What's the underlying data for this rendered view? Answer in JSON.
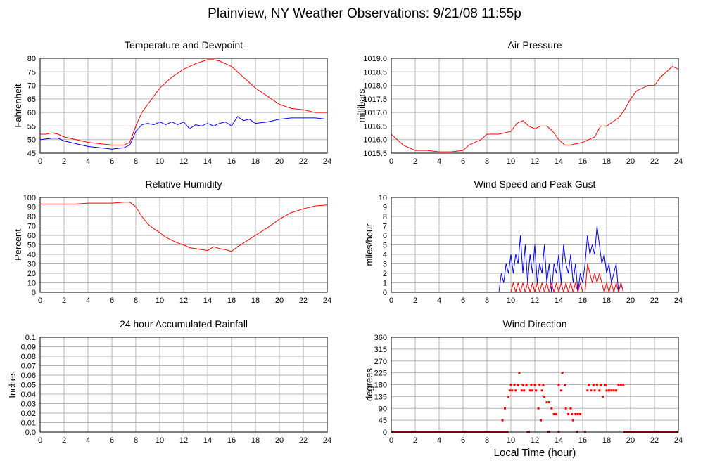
{
  "figure": {
    "title": "Plainview, NY Weather Observations: 9/21/08 11:55p",
    "xlabel": "Local Time (hour)"
  },
  "chart_data": [
    {
      "id": "temp",
      "type": "line",
      "title": "Temperature and Dewpoint",
      "ylabel": "Fahrenheit",
      "xlim": [
        0,
        24
      ],
      "ylim": [
        45,
        80
      ],
      "xticks": [
        0,
        2,
        4,
        6,
        8,
        10,
        12,
        14,
        16,
        18,
        20,
        22,
        24
      ],
      "yticks": [
        45,
        50,
        55,
        60,
        65,
        70,
        75,
        80
      ],
      "ytick_labels": [
        "45",
        "50",
        "55",
        "60",
        "65",
        "70",
        "75",
        "80"
      ],
      "grid": true,
      "series": [
        {
          "color": "#ff0000",
          "x": [
            0,
            0.5,
            1,
            1.5,
            2,
            3,
            4,
            5,
            6,
            7,
            7.5,
            8,
            8.5,
            9,
            9.5,
            10,
            11,
            12,
            13,
            14,
            14.5,
            15,
            16,
            17,
            18,
            19,
            20,
            21,
            22,
            23,
            24
          ],
          "y": [
            52,
            52,
            52.5,
            52,
            51,
            50,
            49,
            48.5,
            48,
            48,
            49,
            55,
            60,
            63,
            66,
            69,
            73,
            76,
            78,
            79.5,
            79.5,
            79,
            77,
            73,
            69,
            66,
            63,
            61.5,
            61,
            60,
            60
          ]
        },
        {
          "color": "#0000ff",
          "x": [
            0,
            1,
            1.5,
            2,
            3,
            4,
            5,
            6,
            7,
            7.5,
            8,
            8.5,
            9,
            9.5,
            10,
            10.5,
            11,
            11.5,
            12,
            12.5,
            13,
            13.5,
            14,
            14.5,
            15,
            15.5,
            16,
            16.5,
            17,
            17.5,
            18,
            19,
            20,
            21,
            22,
            23,
            24
          ],
          "y": [
            50,
            50.5,
            50.5,
            49.5,
            48.5,
            47.5,
            47,
            46.5,
            47,
            48,
            53,
            55.5,
            56,
            55.5,
            56.5,
            55.5,
            56.5,
            55.5,
            56.5,
            54,
            55.5,
            55,
            56,
            55,
            56,
            56.5,
            55,
            58.5,
            57,
            57.5,
            56,
            56.5,
            57.5,
            58,
            58,
            58,
            57.5
          ]
        }
      ]
    },
    {
      "id": "pressure",
      "type": "line",
      "title": "Air Pressure",
      "ylabel": "millibars",
      "xlim": [
        0,
        24
      ],
      "ylim": [
        1015.5,
        1019.0
      ],
      "xticks": [
        0,
        2,
        4,
        6,
        8,
        10,
        12,
        14,
        16,
        18,
        20,
        22,
        24
      ],
      "yticks": [
        1015.5,
        1016.0,
        1016.5,
        1017.0,
        1017.5,
        1018.0,
        1018.5,
        1019.0
      ],
      "ytick_labels": [
        "1015.5",
        "1016.0",
        "1016.5",
        "1017.0",
        "1017.5",
        "1018.0",
        "1018.5",
        "1019.0"
      ],
      "grid": true,
      "series": [
        {
          "color": "#ff0000",
          "x": [
            0,
            0.5,
            1,
            1.5,
            2,
            3,
            4,
            5,
            6,
            6.5,
            7,
            7.5,
            8,
            9,
            10,
            10.5,
            11,
            11.5,
            12,
            12.5,
            13,
            13.5,
            14,
            14.5,
            15,
            16,
            17,
            17.5,
            18,
            19,
            19.5,
            20,
            20.5,
            21,
            21.5,
            22,
            22.5,
            23,
            23.5,
            24
          ],
          "y": [
            1016.2,
            1016.0,
            1015.8,
            1015.7,
            1015.6,
            1015.6,
            1015.55,
            1015.55,
            1015.6,
            1015.8,
            1015.9,
            1016.0,
            1016.2,
            1016.2,
            1016.3,
            1016.6,
            1016.7,
            1016.5,
            1016.4,
            1016.5,
            1016.5,
            1016.3,
            1016.0,
            1015.8,
            1015.8,
            1015.9,
            1016.1,
            1016.5,
            1016.5,
            1016.8,
            1017.1,
            1017.5,
            1017.8,
            1017.9,
            1018.0,
            1018.0,
            1018.3,
            1018.5,
            1018.7,
            1018.6
          ]
        }
      ]
    },
    {
      "id": "humidity",
      "type": "line",
      "title": "Relative Humidity",
      "ylabel": "Percent",
      "xlim": [
        0,
        24
      ],
      "ylim": [
        0,
        100
      ],
      "xticks": [
        0,
        2,
        4,
        6,
        8,
        10,
        12,
        14,
        16,
        18,
        20,
        22,
        24
      ],
      "yticks": [
        0,
        10,
        20,
        30,
        40,
        50,
        60,
        70,
        80,
        90,
        100
      ],
      "ytick_labels": [
        "0",
        "10",
        "20",
        "30",
        "40",
        "50",
        "60",
        "70",
        "80",
        "90",
        "100"
      ],
      "grid": true,
      "series": [
        {
          "color": "#ff0000",
          "x": [
            0,
            1,
            2,
            3,
            4,
            5,
            6,
            7,
            7.5,
            8,
            8.5,
            9,
            9.5,
            10,
            10.5,
            11,
            11.5,
            12,
            12.5,
            13,
            13.5,
            14,
            14.5,
            15,
            15.5,
            16,
            16.5,
            17,
            18,
            19,
            20,
            21,
            22,
            23,
            24
          ],
          "y": [
            93,
            93,
            93,
            93,
            94,
            94,
            94,
            95,
            95,
            90,
            80,
            72,
            67,
            63,
            58,
            55,
            52,
            50,
            47,
            46,
            45,
            44,
            48,
            46,
            45,
            43,
            48,
            52,
            60,
            68,
            77,
            84,
            88,
            91,
            92
          ]
        }
      ]
    },
    {
      "id": "wind",
      "type": "line",
      "title": "Wind Speed and Peak Gust",
      "ylabel": "miles/hour",
      "xlim": [
        0,
        24
      ],
      "ylim": [
        0,
        10
      ],
      "xticks": [
        0,
        2,
        4,
        6,
        8,
        10,
        12,
        14,
        16,
        18,
        20,
        22,
        24
      ],
      "yticks": [
        0,
        1,
        2,
        3,
        4,
        5,
        6,
        7,
        8,
        9,
        10
      ],
      "ytick_labels": [
        "0",
        "1",
        "2",
        "3",
        "4",
        "5",
        "6",
        "7",
        "8",
        "9",
        "10"
      ],
      "grid": true,
      "series": [
        {
          "color": "#0000ff",
          "x": [
            0,
            9.0,
            9.2,
            9.4,
            9.6,
            9.8,
            10.0,
            10.2,
            10.4,
            10.6,
            10.8,
            11.0,
            11.2,
            11.4,
            11.6,
            11.8,
            12.0,
            12.2,
            12.4,
            12.6,
            12.8,
            13.0,
            13.2,
            13.4,
            13.6,
            13.8,
            14.0,
            14.2,
            14.4,
            14.6,
            14.8,
            15.0,
            15.2,
            15.4,
            15.6,
            15.8,
            16.0,
            16.2,
            16.4,
            16.6,
            16.8,
            17.0,
            17.2,
            17.4,
            17.6,
            17.8,
            18.0,
            18.2,
            18.4,
            18.6,
            18.8,
            19.0,
            19.2,
            19.4,
            19.6,
            20,
            24
          ],
          "y": [
            0,
            0,
            2,
            1,
            3,
            2,
            4,
            2,
            4,
            3,
            6,
            2,
            5,
            1,
            4,
            2,
            5,
            1,
            3,
            2,
            5,
            1,
            3,
            0,
            3,
            2,
            4,
            1,
            5,
            3,
            2,
            4,
            1,
            3,
            0,
            2,
            1,
            3,
            6,
            4,
            5,
            4,
            7,
            5,
            3,
            4,
            2,
            3,
            1,
            2,
            3,
            0,
            1,
            0,
            0,
            0,
            0
          ]
        },
        {
          "color": "#ff0000",
          "x": [
            0,
            10.0,
            10.2,
            10.4,
            10.6,
            10.8,
            11.0,
            11.2,
            11.4,
            11.6,
            11.8,
            12.0,
            12.2,
            12.4,
            12.6,
            12.8,
            13.0,
            13.2,
            13.4,
            13.6,
            13.8,
            14.0,
            14.2,
            14.4,
            14.6,
            14.8,
            15.0,
            15.2,
            15.4,
            15.6,
            15.8,
            16.0,
            16.2,
            16.4,
            16.6,
            16.8,
            17.0,
            17.2,
            17.4,
            17.6,
            17.8,
            18.0,
            18.2,
            18.4,
            18.6,
            18.8,
            19.0,
            19.2,
            19.4,
            24
          ],
          "y": [
            0,
            0,
            1,
            0,
            1,
            0,
            1,
            0,
            1,
            0,
            1,
            0,
            1,
            0,
            1,
            0,
            1,
            0,
            1,
            0,
            1,
            0,
            1,
            0,
            1,
            0,
            1,
            0,
            1,
            0,
            1,
            0,
            0,
            3,
            2,
            1,
            2,
            1,
            2,
            1,
            0,
            1,
            0,
            1,
            0,
            1,
            0,
            1,
            0,
            0
          ]
        }
      ]
    },
    {
      "id": "rain",
      "type": "line",
      "title": "24 hour Accumulated Rainfall",
      "ylabel": "Inches",
      "xlim": [
        0,
        24
      ],
      "ylim": [
        0,
        0.1
      ],
      "xticks": [
        0,
        2,
        4,
        6,
        8,
        10,
        12,
        14,
        16,
        18,
        20,
        22,
        24
      ],
      "yticks": [
        0,
        0.01,
        0.02,
        0.03,
        0.04,
        0.05,
        0.06,
        0.07,
        0.08,
        0.09,
        0.1
      ],
      "ytick_labels": [
        "0.0",
        "0.01",
        "0.02",
        "0.03",
        "0.04",
        "0.05",
        "0.06",
        "0.07",
        "0.08",
        "0.09",
        "0.1"
      ],
      "grid": true,
      "series": [
        {
          "color": "#ff0000",
          "x": [
            0,
            24
          ],
          "y": [
            0,
            0
          ]
        }
      ]
    },
    {
      "id": "direction",
      "type": "scatter",
      "title": "Wind Direction",
      "ylabel": "degrees",
      "xlim": [
        0,
        24
      ],
      "ylim": [
        0,
        360
      ],
      "xticks": [
        0,
        2,
        4,
        6,
        8,
        10,
        12,
        14,
        16,
        18,
        20,
        22,
        24
      ],
      "yticks": [
        0,
        45,
        90,
        135,
        180,
        225,
        270,
        315,
        360
      ],
      "ytick_labels": [
        "0",
        "45",
        "90",
        "135",
        "180",
        "225",
        "270",
        "315",
        "360"
      ],
      "grid": true,
      "series": [
        {
          "color": "#ff0000",
          "x": [
            9.3,
            9.5,
            9.8,
            9.9,
            10.0,
            10.1,
            10.3,
            10.4,
            10.6,
            10.7,
            10.9,
            11.0,
            11.1,
            11.3,
            11.4,
            11.6,
            11.7,
            11.8,
            12.0,
            12.1,
            12.3,
            12.4,
            12.5,
            12.6,
            12.7,
            12.8,
            13.0,
            13.1,
            13.2,
            13.4,
            13.6,
            13.7,
            13.8,
            14.0,
            14.2,
            14.3,
            14.5,
            14.6,
            14.8,
            15.0,
            15.1,
            15.2,
            15.4,
            15.6,
            15.8,
            16.4,
            16.5,
            16.7,
            16.9,
            17.0,
            17.2,
            17.4,
            17.5,
            17.7,
            17.9,
            18.0,
            18.2,
            18.4,
            18.6,
            18.8,
            19.0,
            19.2,
            19.4
          ],
          "y": [
            45,
            90,
            135,
            158,
            180,
            158,
            180,
            158,
            180,
            225,
            158,
            180,
            158,
            180,
            0,
            158,
            180,
            158,
            180,
            158,
            90,
            180,
            45,
            158,
            180,
            135,
            113,
            0,
            113,
            90,
            68,
            68,
            68,
            180,
            158,
            225,
            180,
            90,
            68,
            90,
            68,
            45,
            68,
            68,
            68,
            158,
            180,
            158,
            180,
            158,
            180,
            158,
            180,
            135,
            180,
            158,
            158,
            158,
            158,
            158,
            180,
            180,
            180
          ]
        },
        {
          "color": "#ff0000",
          "x": [
            0,
            1,
            2,
            3,
            4,
            5,
            6,
            7,
            8,
            9,
            9.6,
            11.5,
            13.2,
            14.0,
            15.5,
            16.2,
            19.5,
            20,
            21,
            22,
            23,
            24
          ],
          "y": [
            0,
            0,
            0,
            0,
            0,
            0,
            0,
            0,
            0,
            0,
            0,
            0,
            0,
            0,
            0,
            0,
            0,
            0,
            0,
            0,
            0,
            0
          ],
          "dense_baseline": [
            [
              0,
              9.8
            ],
            [
              19.4,
              24
            ]
          ]
        }
      ]
    }
  ]
}
